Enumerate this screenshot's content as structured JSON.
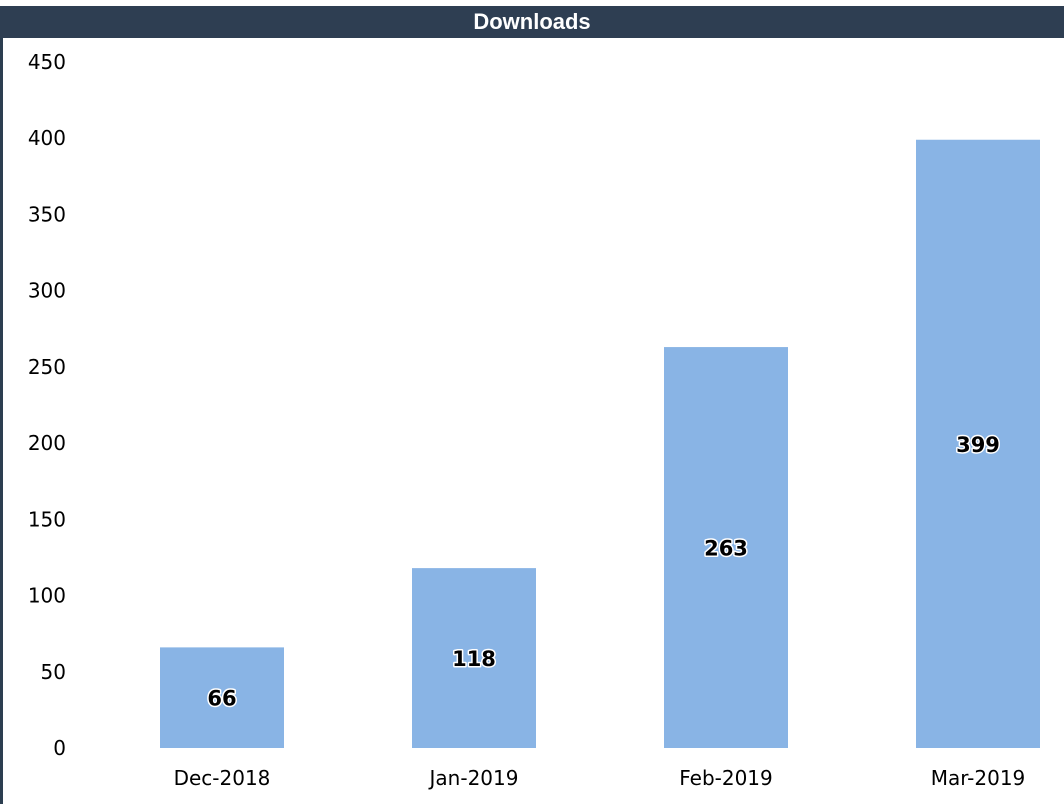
{
  "header": {
    "title": "Downloads"
  },
  "colors": {
    "header_bg": "#2e3e52",
    "bar": "#89b4e5",
    "frame": "#2c3e50"
  },
  "chart_data": {
    "type": "bar",
    "title": "Downloads",
    "xlabel": "",
    "ylabel": "",
    "categories": [
      "Dec-2018",
      "Jan-2019",
      "Feb-2019",
      "Mar-2019"
    ],
    "values": [
      66,
      118,
      263,
      399
    ],
    "ylim": [
      0,
      450
    ],
    "yticks": [
      0,
      50,
      100,
      150,
      200,
      250,
      300,
      350,
      400,
      450
    ],
    "data_labels": [
      "66",
      "118",
      "263",
      "399"
    ],
    "grid": false,
    "legend": "none"
  }
}
